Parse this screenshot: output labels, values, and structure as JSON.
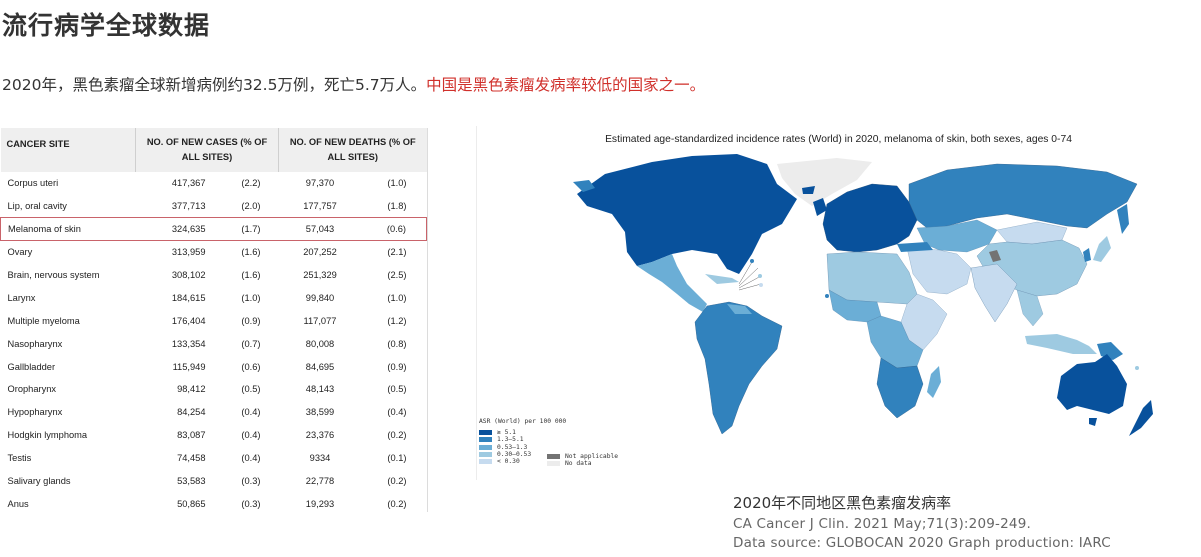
{
  "page": {
    "title": "流行病学全球数据",
    "summary_plain": "2020年，黑色素瘤全球新增病例约32.5万例，死亡5.7万人。",
    "summary_highlight": "中国是黑色素瘤发病率较低的国家之一。",
    "highlight_color": "#d0302b"
  },
  "table": {
    "headers": {
      "site": "CANCER SITE",
      "cases": "NO. OF NEW CASES (% OF ALL SITES)",
      "deaths": "NO. OF NEW DEATHS (% OF ALL SITES)"
    },
    "highlighted_row": "Melanoma of skin",
    "rows": [
      {
        "site": "Corpus uteri",
        "cases": "417,367",
        "cases_pct": "(2.2)",
        "deaths": "97,370",
        "deaths_pct": "(1.0)"
      },
      {
        "site": "Lip, oral cavity",
        "cases": "377,713",
        "cases_pct": "(2.0)",
        "deaths": "177,757",
        "deaths_pct": "(1.8)"
      },
      {
        "site": "Melanoma of skin",
        "cases": "324,635",
        "cases_pct": "(1.7)",
        "deaths": "57,043",
        "deaths_pct": "(0.6)"
      },
      {
        "site": "Ovary",
        "cases": "313,959",
        "cases_pct": "(1.6)",
        "deaths": "207,252",
        "deaths_pct": "(2.1)"
      },
      {
        "site": "Brain, nervous system",
        "cases": "308,102",
        "cases_pct": "(1.6)",
        "deaths": "251,329",
        "deaths_pct": "(2.5)"
      },
      {
        "site": "Larynx",
        "cases": "184,615",
        "cases_pct": "(1.0)",
        "deaths": "99,840",
        "deaths_pct": "(1.0)"
      },
      {
        "site": "Multiple myeloma",
        "cases": "176,404",
        "cases_pct": "(0.9)",
        "deaths": "117,077",
        "deaths_pct": "(1.2)"
      },
      {
        "site": "Nasopharynx",
        "cases": "133,354",
        "cases_pct": "(0.7)",
        "deaths": "80,008",
        "deaths_pct": "(0.8)"
      },
      {
        "site": "Gallbladder",
        "cases": "115,949",
        "cases_pct": "(0.6)",
        "deaths": "84,695",
        "deaths_pct": "(0.9)"
      },
      {
        "site": "Oropharynx",
        "cases": "98,412",
        "cases_pct": "(0.5)",
        "deaths": "48,143",
        "deaths_pct": "(0.5)"
      },
      {
        "site": "Hypopharynx",
        "cases": "84,254",
        "cases_pct": "(0.4)",
        "deaths": "38,599",
        "deaths_pct": "(0.4)"
      },
      {
        "site": "Hodgkin lymphoma",
        "cases": "83,087",
        "cases_pct": "(0.4)",
        "deaths": "23,376",
        "deaths_pct": "(0.2)"
      },
      {
        "site": "Testis",
        "cases": "74,458",
        "cases_pct": "(0.4)",
        "deaths": "9334",
        "deaths_pct": "(0.1)"
      },
      {
        "site": "Salivary glands",
        "cases": "53,583",
        "cases_pct": "(0.3)",
        "deaths": "22,778",
        "deaths_pct": "(0.2)"
      },
      {
        "site": "Anus",
        "cases": "50,865",
        "cases_pct": "(0.3)",
        "deaths": "19,293",
        "deaths_pct": "(0.2)"
      }
    ]
  },
  "map": {
    "title": "Estimated age-standardized incidence rates (World) in 2020, melanoma of skin, both sexes, ages 0-74",
    "legend_title": "ASR (World) per 100 000",
    "legend": [
      {
        "label": "≥ 5.1",
        "color": "#08519c"
      },
      {
        "label": "1.3–5.1",
        "color": "#3182bd"
      },
      {
        "label": "0.53–1.3",
        "color": "#6baed6"
      },
      {
        "label": "0.30–0.53",
        "color": "#9ecae1"
      },
      {
        "label": "< 0.30",
        "color": "#c6dbef"
      }
    ],
    "legend_extra": [
      {
        "label": "Not applicable",
        "color": "#737373"
      },
      {
        "label": "No data",
        "color": "#ececec"
      }
    ]
  },
  "caption": {
    "title": "2020年不同地区黑色素瘤发病率",
    "citation": "CA Cancer J Clin. 2021 May;71(3):209-249.",
    "source": "Data source: GLOBOCAN 2020 Graph production: IARC"
  }
}
